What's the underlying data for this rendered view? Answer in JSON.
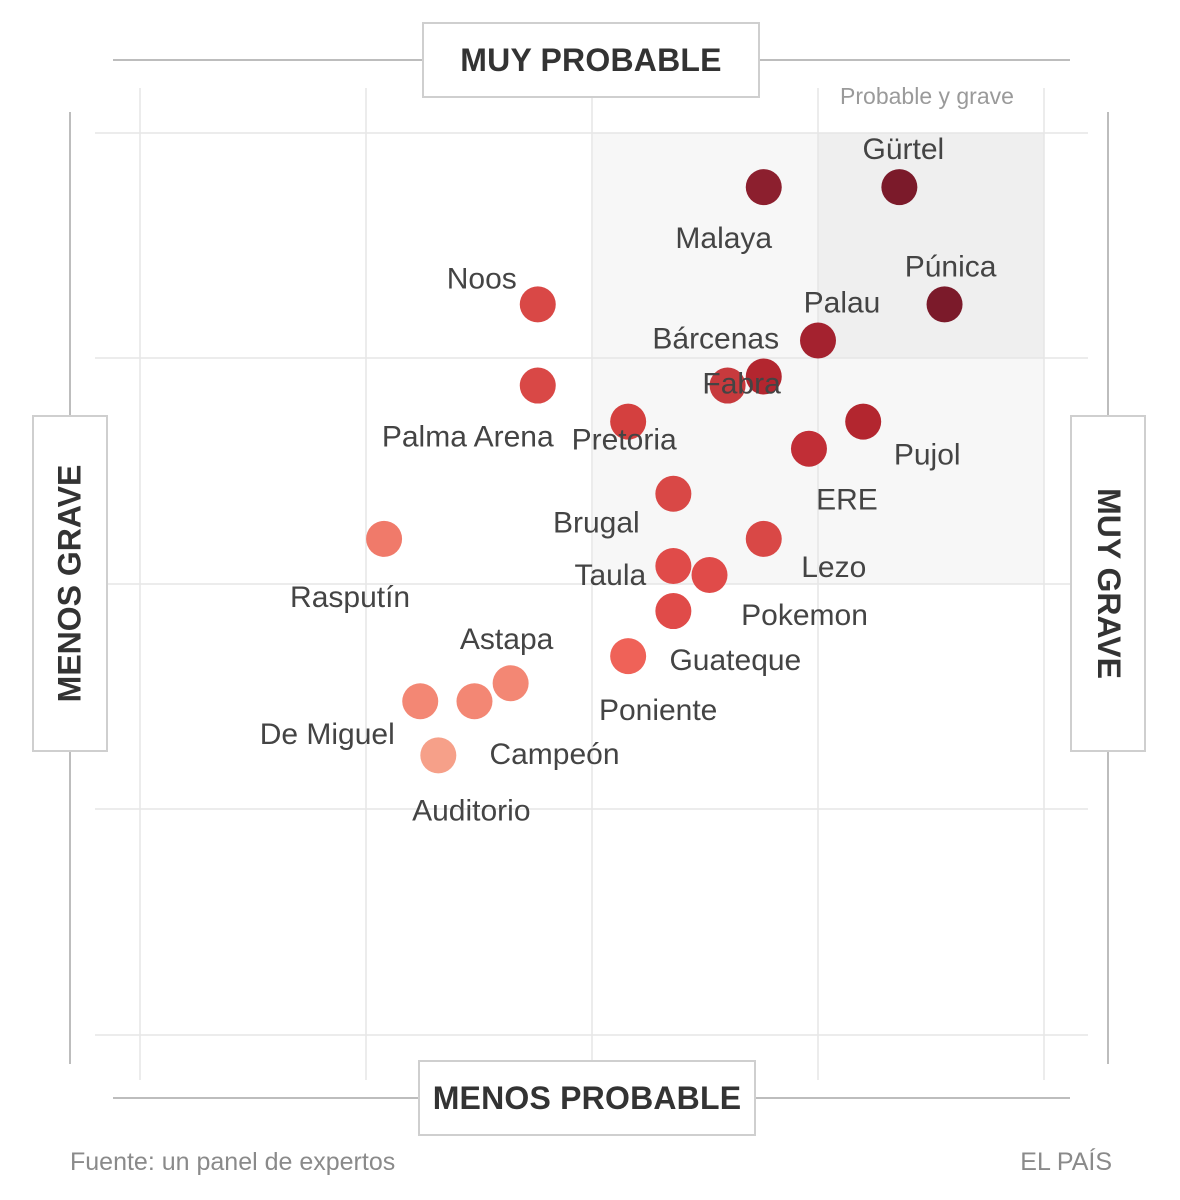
{
  "chart_data": {
    "type": "scatter",
    "title": "",
    "x_top_label": "MUY PROBABLE",
    "x_bottom_label": "MENOS PROBABLE",
    "y_left_label": "MENOS GRAVE",
    "y_right_label": "MUY GRAVE",
    "quadrant_label": "Probable y grave",
    "grid": true,
    "points": [
      {
        "name": "Gürtel",
        "severity": 8.4,
        "likelihood": 9.4,
        "color": "#7b1a2a"
      },
      {
        "name": "Malaya",
        "severity": 6.9,
        "likelihood": 9.4,
        "color": "#8c1f2e"
      },
      {
        "name": "Púnica",
        "severity": 8.9,
        "likelihood": 8.1,
        "color": "#7b1a2a"
      },
      {
        "name": "Palau",
        "severity": 7.5,
        "likelihood": 7.7,
        "color": "#a4222f"
      },
      {
        "name": "Noos",
        "severity": 4.4,
        "likelihood": 8.1,
        "color": "#d94846"
      },
      {
        "name": "Bárcenas",
        "severity": 6.9,
        "likelihood": 7.3,
        "color": "#b3262f"
      },
      {
        "name": "Fabra",
        "severity": 6.5,
        "likelihood": 7.2,
        "color": "#c73a3d"
      },
      {
        "name": "Palma Arena",
        "severity": 4.4,
        "likelihood": 7.2,
        "color": "#d94846"
      },
      {
        "name": "Pretoria",
        "severity": 5.4,
        "likelihood": 6.8,
        "color": "#d4403f"
      },
      {
        "name": "Pujol",
        "severity": 8.0,
        "likelihood": 6.8,
        "color": "#b3262f"
      },
      {
        "name": "ERE",
        "severity": 7.4,
        "likelihood": 6.5,
        "color": "#c12e36"
      },
      {
        "name": "Brugal",
        "severity": 5.9,
        "likelihood": 6.0,
        "color": "#d94846"
      },
      {
        "name": "Rasputín",
        "severity": 2.7,
        "likelihood": 5.5,
        "color": "#f07a6a"
      },
      {
        "name": "Lezo",
        "severity": 6.9,
        "likelihood": 5.5,
        "color": "#d94846"
      },
      {
        "name": "Taula",
        "severity": 5.9,
        "likelihood": 5.2,
        "color": "#e04b49"
      },
      {
        "name": "Pokemon",
        "severity": 6.3,
        "likelihood": 5.1,
        "color": "#e04b49"
      },
      {
        "name": "Guateque",
        "severity": 5.9,
        "likelihood": 4.7,
        "color": "#e04b49"
      },
      {
        "name": "Poniente",
        "severity": 5.4,
        "likelihood": 4.2,
        "color": "#ef6258"
      },
      {
        "name": "Astapa",
        "severity": 4.1,
        "likelihood": 3.9,
        "color": "#f38774"
      },
      {
        "name": "Campeón",
        "severity": 3.7,
        "likelihood": 3.7,
        "color": "#f38774"
      },
      {
        "name": "De Miguel",
        "severity": 3.1,
        "likelihood": 3.7,
        "color": "#f38774"
      },
      {
        "name": "Auditorio",
        "severity": 3.3,
        "likelihood": 3.1,
        "color": "#f6a089"
      }
    ]
  },
  "footer": {
    "source": "Fuente: un panel de expertos",
    "brand": "EL PAÍS"
  }
}
